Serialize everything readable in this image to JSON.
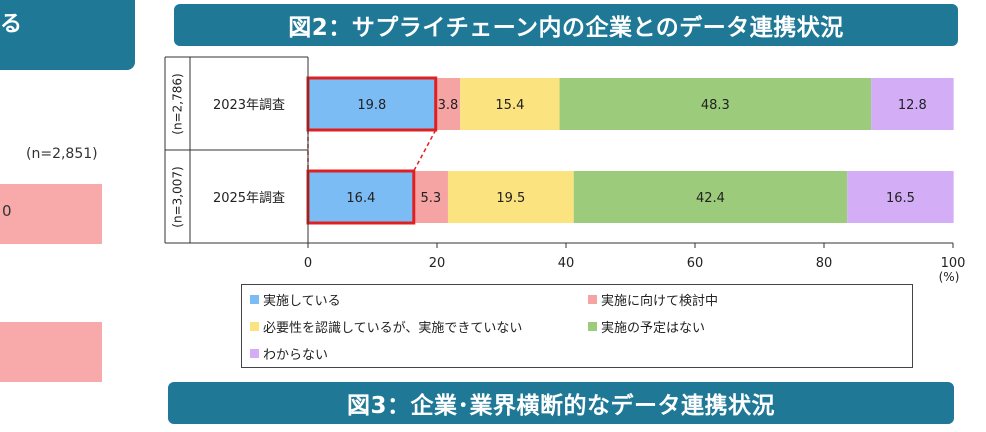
{
  "left_panel": {
    "banner_fragment": "る",
    "sample_size": "(n=2,851)",
    "value_fragment": "0",
    "bar_color": "#f8a9aa"
  },
  "figure2": {
    "title": "図2：サプライチェーン内の企業とのデータ連携状況"
  },
  "figure3": {
    "title": "図3：企業･業界横断的なデータ連携状況"
  },
  "colors": {
    "banner": "#1e7896",
    "highlight": "#e02020"
  },
  "chart_data": {
    "type": "bar",
    "orientation": "horizontal",
    "stacked": true,
    "categories": [
      "2023年調査",
      "2025年調査"
    ],
    "sample_sizes": [
      "(n=2,786)",
      "(n=3,007)"
    ],
    "series": [
      {
        "name": "実施している",
        "values": [
          19.8,
          16.4
        ],
        "color": "#7cbcf4"
      },
      {
        "name": "実施に向けて検討中",
        "values": [
          3.8,
          5.3
        ],
        "color": "#f6a3a4"
      },
      {
        "name": "必要性を認識しているが、実施できていない",
        "values": [
          15.4,
          19.5
        ],
        "color": "#fbe37f"
      },
      {
        "name": "実施の予定はない",
        "values": [
          48.3,
          42.4
        ],
        "color": "#9ccc7b"
      },
      {
        "name": "わからない",
        "values": [
          12.8,
          16.5
        ],
        "color": "#d3aef7"
      }
    ],
    "xlim": [
      0,
      100
    ],
    "xticks": [
      "0",
      "20",
      "40",
      "60",
      "80",
      "100"
    ],
    "xunit": "(%)",
    "highlighted_series": "実施している",
    "legend_position": "bottom",
    "grid": false
  }
}
